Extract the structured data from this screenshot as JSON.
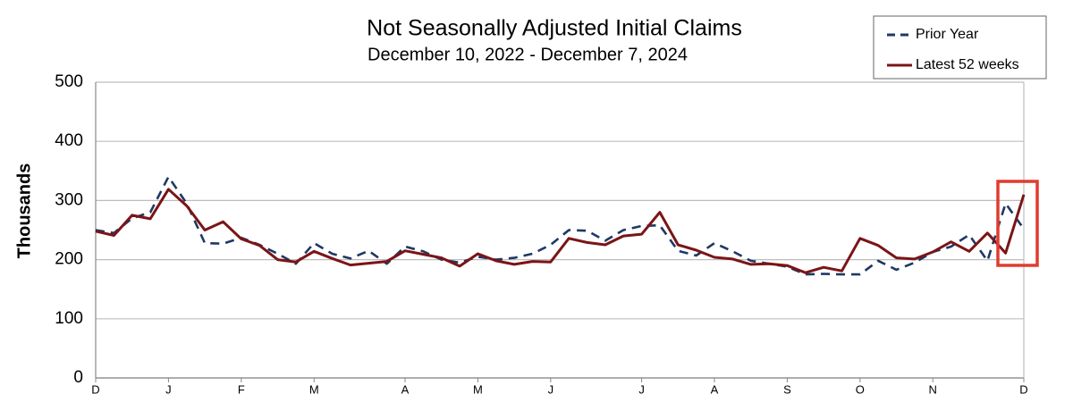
{
  "chart_data": {
    "type": "line",
    "title": "Not Seasonally Adjusted Initial Claims",
    "subtitle": "December 10, 2022  -  December 7, 2024",
    "y_label": "Thousands",
    "categories": [
      "D",
      null,
      null,
      null,
      "J",
      null,
      null,
      null,
      "F",
      null,
      null,
      null,
      "M",
      null,
      null,
      null,
      null,
      "A",
      null,
      null,
      null,
      "M",
      null,
      null,
      null,
      "J",
      null,
      null,
      null,
      null,
      "J",
      null,
      null,
      null,
      "A",
      null,
      null,
      null,
      "S",
      null,
      null,
      null,
      "O",
      null,
      null,
      null,
      "N",
      null,
      null,
      null,
      null,
      "D"
    ],
    "ylim": [
      0,
      500
    ],
    "yticks": [
      0,
      100,
      200,
      300,
      400,
      500
    ],
    "grid": true,
    "legend": "upper right",
    "series": [
      {
        "name": "Prior Year",
        "color": "#1f3864",
        "dashed": true,
        "values": [
          250,
          245,
          270,
          280,
          340,
          295,
          228,
          227,
          237,
          225,
          210,
          193,
          228,
          210,
          202,
          215,
          193,
          222,
          214,
          200,
          195,
          205,
          200,
          203,
          210,
          225,
          250,
          249,
          232,
          250,
          257,
          258,
          215,
          207,
          228,
          214,
          198,
          193,
          188,
          175,
          176,
          175,
          175,
          198,
          183,
          195,
          213,
          222,
          242,
          198,
          295,
          252
        ]
      },
      {
        "name": "Latest 52 weeks",
        "color": "#7b1416",
        "dashed": false,
        "values": [
          248,
          241,
          275,
          269,
          319,
          291,
          250,
          264,
          235,
          224,
          200,
          196,
          214,
          202,
          191,
          194,
          197,
          215,
          209,
          203,
          189,
          210,
          198,
          192,
          197,
          196,
          236,
          229,
          225,
          240,
          243,
          280,
          225,
          216,
          204,
          201,
          192,
          193,
          190,
          178,
          187,
          181,
          236,
          224,
          203,
          201,
          213,
          230,
          214,
          245,
          211,
          310
        ]
      }
    ]
  }
}
